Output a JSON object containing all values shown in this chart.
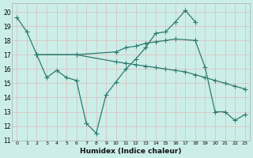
{
  "xlabel": "Humidex (Indice chaleur)",
  "background_color": "#cceee8",
  "grid_color": "#ddbbbb",
  "line_color": "#2d7a6e",
  "xlim": [
    -0.5,
    23.5
  ],
  "ylim": [
    11,
    20.6
  ],
  "line1_x": [
    0,
    1,
    2,
    3,
    4,
    5,
    6,
    7,
    8,
    9,
    10,
    11,
    12,
    13,
    14,
    15,
    16,
    17,
    18
  ],
  "line1_y": [
    19.6,
    18.6,
    17.0,
    15.4,
    15.9,
    15.4,
    15.2,
    12.2,
    11.5,
    14.2,
    15.1,
    16.0,
    16.7,
    17.5,
    18.5,
    18.6,
    19.3,
    20.1,
    19.3
  ],
  "line2_x": [
    2,
    6,
    10,
    11,
    12,
    13,
    14,
    15,
    16,
    18
  ],
  "line2_y": [
    17.0,
    17.0,
    17.2,
    17.5,
    17.6,
    17.8,
    17.9,
    18.0,
    18.1,
    18.0
  ],
  "line3_x": [
    2,
    6,
    10,
    11,
    12,
    13,
    14,
    15,
    16,
    17,
    18,
    19,
    20,
    21,
    22,
    23
  ],
  "line3_y": [
    17.0,
    17.0,
    16.5,
    16.4,
    16.3,
    16.2,
    16.1,
    16.0,
    15.9,
    15.8,
    15.6,
    15.4,
    15.2,
    15.0,
    14.8,
    14.6
  ],
  "line4_x": [
    18,
    19,
    20,
    21,
    22,
    23
  ],
  "line4_y": [
    18.0,
    16.1,
    13.0,
    13.0,
    12.4,
    12.8
  ]
}
